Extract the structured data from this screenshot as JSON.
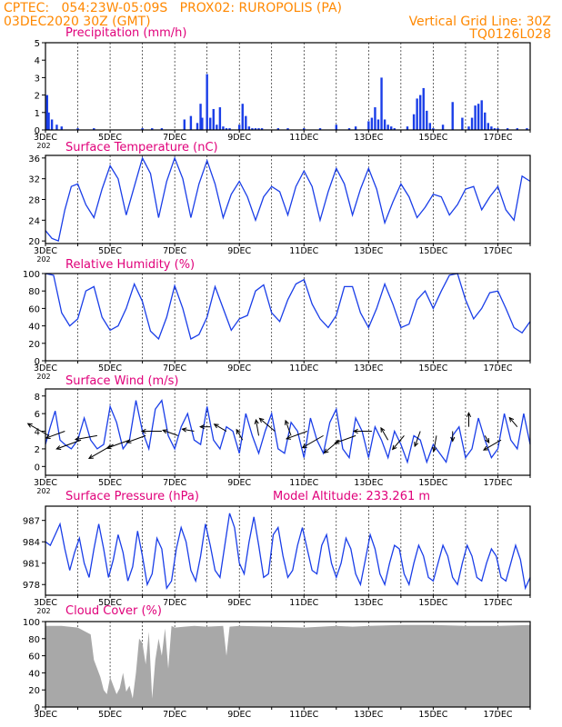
{
  "header": {
    "line1_left": "CPTEC:   054:23W-05:09S   PROX02: RUROPOLIS (PA)",
    "line2_left": "03DEC2020 30Z (GMT)",
    "line2_right": "Vertical Grid Line: 30Z",
    "line3_right": "TQ0126L028"
  },
  "x_tick_labels": [
    "3DEC",
    "5DEC",
    "7DEC",
    "9DEC",
    "11DEC",
    "13DEC",
    "15DEC",
    "17DEC"
  ],
  "x_year_fragment": "202",
  "colors": {
    "header": "#ff8800",
    "title": "#e0007a",
    "line": "#1a3ee8",
    "bar": "#1a3ee8",
    "cloud": "#a8a8a8",
    "arrow": "#000000"
  },
  "chart_data": [
    {
      "id": "precip",
      "type": "bar",
      "title": "Precipitation (mm/h)",
      "x_range": [
        3.0,
        18.0
      ],
      "ylim": [
        0,
        5
      ],
      "y_ticks": [
        0,
        1,
        2,
        3,
        4,
        5
      ],
      "x_days": [
        3.05,
        3.1,
        3.2,
        3.35,
        3.5,
        4.0,
        4.5,
        6.0,
        6.3,
        6.6,
        7.3,
        7.5,
        7.7,
        7.8,
        7.85,
        8.0,
        8.1,
        8.2,
        8.3,
        8.4,
        8.5,
        8.6,
        8.7,
        9.0,
        9.1,
        9.2,
        9.3,
        9.4,
        9.5,
        9.6,
        9.7,
        10.2,
        10.5,
        11.0,
        11.5,
        12.0,
        12.4,
        12.6,
        13.0,
        13.1,
        13.2,
        13.3,
        13.4,
        13.5,
        13.6,
        13.7,
        13.8,
        14.2,
        14.4,
        14.5,
        14.6,
        14.7,
        14.8,
        14.9,
        15.0,
        15.3,
        15.6,
        15.9,
        16.1,
        16.2,
        16.3,
        16.4,
        16.5,
        16.6,
        16.7,
        16.8,
        16.9,
        17.0,
        17.3,
        17.6,
        17.9
      ],
      "values": [
        2.0,
        1.0,
        0.6,
        0.3,
        0.2,
        0.1,
        0.1,
        0.1,
        0.1,
        0.1,
        0.6,
        0.8,
        0.4,
        1.5,
        0.7,
        3.2,
        0.7,
        1.2,
        0.3,
        1.3,
        0.2,
        0.1,
        0.1,
        0.3,
        1.5,
        0.8,
        0.2,
        0.1,
        0.1,
        0.1,
        0.1,
        0.1,
        0.1,
        0.1,
        0.1,
        0.3,
        0.1,
        0.2,
        0.5,
        0.7,
        1.3,
        0.6,
        3.0,
        0.6,
        0.3,
        0.2,
        0.1,
        0.2,
        0.9,
        1.8,
        2.0,
        2.4,
        1.1,
        0.4,
        0.1,
        0.3,
        1.6,
        0.7,
        0.2,
        0.7,
        1.4,
        1.5,
        1.7,
        1.0,
        0.4,
        0.2,
        0.1,
        0.1,
        0.1,
        0.1,
        0.1
      ]
    },
    {
      "id": "temp",
      "type": "line",
      "title": "Surface Temperature (nC)",
      "x_range": [
        3.0,
        18.0
      ],
      "ylim": [
        19.5,
        36.5
      ],
      "y_ticks": [
        20,
        24,
        28,
        32,
        36
      ],
      "x_days": [
        3.0,
        3.2,
        3.4,
        3.6,
        3.8,
        4.0,
        4.25,
        4.5,
        4.75,
        5.0,
        5.25,
        5.5,
        5.75,
        6.0,
        6.25,
        6.5,
        6.75,
        7.0,
        7.25,
        7.5,
        7.75,
        8.0,
        8.25,
        8.5,
        8.75,
        9.0,
        9.25,
        9.5,
        9.75,
        10.0,
        10.25,
        10.5,
        10.75,
        11.0,
        11.25,
        11.5,
        11.75,
        12.0,
        12.25,
        12.5,
        12.75,
        13.0,
        13.25,
        13.5,
        13.75,
        14.0,
        14.25,
        14.5,
        14.75,
        15.0,
        15.25,
        15.5,
        15.75,
        16.0,
        16.25,
        16.5,
        16.75,
        17.0,
        17.25,
        17.5,
        17.75,
        18.0
      ],
      "values": [
        22.0,
        20.5,
        20.0,
        26.0,
        30.5,
        31.0,
        27.0,
        24.5,
        30.0,
        34.5,
        32.0,
        25.0,
        30.5,
        36.0,
        33.0,
        24.5,
        31.5,
        36.0,
        32.0,
        24.5,
        31.0,
        35.5,
        31.0,
        24.5,
        29.0,
        31.5,
        28.5,
        24.0,
        28.5,
        30.5,
        29.5,
        25.0,
        30.5,
        33.5,
        30.5,
        24.0,
        29.5,
        34.0,
        31.0,
        25.0,
        30.0,
        34.0,
        30.0,
        23.5,
        27.5,
        31.0,
        28.5,
        24.5,
        26.5,
        29.0,
        28.5,
        25.0,
        27.0,
        30.0,
        30.5,
        26.0,
        28.5,
        30.5,
        26.0,
        24.0,
        32.5,
        31.5
      ]
    },
    {
      "id": "rh",
      "type": "line",
      "title": "Relative Humidity (%)",
      "x_range": [
        3.0,
        18.0
      ],
      "ylim": [
        0,
        100
      ],
      "y_ticks": [
        0,
        20,
        40,
        60,
        80,
        100
      ],
      "x_days": [
        3.0,
        3.25,
        3.5,
        3.75,
        4.0,
        4.25,
        4.5,
        4.75,
        5.0,
        5.25,
        5.5,
        5.75,
        6.0,
        6.25,
        6.5,
        6.75,
        7.0,
        7.25,
        7.5,
        7.75,
        8.0,
        8.25,
        8.5,
        8.75,
        9.0,
        9.25,
        9.5,
        9.75,
        10.0,
        10.25,
        10.5,
        10.75,
        11.0,
        11.25,
        11.5,
        11.75,
        12.0,
        12.25,
        12.5,
        12.75,
        13.0,
        13.25,
        13.5,
        13.75,
        14.0,
        14.25,
        14.5,
        14.75,
        15.0,
        15.25,
        15.5,
        15.75,
        16.0,
        16.25,
        16.5,
        16.75,
        17.0,
        17.25,
        17.5,
        17.75,
        18.0
      ],
      "values": [
        100,
        98,
        55,
        40,
        48,
        80,
        85,
        50,
        35,
        40,
        60,
        88,
        68,
        34,
        25,
        50,
        86,
        60,
        25,
        30,
        50,
        85,
        60,
        35,
        48,
        52,
        80,
        87,
        55,
        45,
        70,
        88,
        93,
        65,
        48,
        38,
        52,
        85,
        85,
        55,
        38,
        60,
        88,
        65,
        38,
        42,
        70,
        80,
        60,
        80,
        98,
        100,
        70,
        48,
        60,
        78,
        80,
        60,
        38,
        32,
        45
      ]
    },
    {
      "id": "wind",
      "type": "line",
      "title": "Surface Wind (m/s)",
      "x_range": [
        3.0,
        18.0
      ],
      "ylim": [
        -1,
        8.8
      ],
      "y_ticks": [
        0,
        2,
        4,
        6,
        8
      ],
      "x_days": [
        3.0,
        3.15,
        3.3,
        3.45,
        3.6,
        3.8,
        4.0,
        4.2,
        4.4,
        4.6,
        4.8,
        5.0,
        5.2,
        5.4,
        5.6,
        5.8,
        6.0,
        6.2,
        6.4,
        6.6,
        6.8,
        7.0,
        7.2,
        7.4,
        7.6,
        7.8,
        8.0,
        8.2,
        8.4,
        8.6,
        8.8,
        9.0,
        9.2,
        9.4,
        9.6,
        9.8,
        10.0,
        10.2,
        10.4,
        10.6,
        10.8,
        11.0,
        11.2,
        11.4,
        11.6,
        11.8,
        12.0,
        12.2,
        12.4,
        12.6,
        12.8,
        13.0,
        13.2,
        13.4,
        13.6,
        13.8,
        14.0,
        14.2,
        14.4,
        14.6,
        14.8,
        15.0,
        15.2,
        15.4,
        15.6,
        15.8,
        16.0,
        16.2,
        16.4,
        16.6,
        16.8,
        17.0,
        17.2,
        17.4,
        17.6,
        17.8,
        18.0
      ],
      "values": [
        2.5,
        4.5,
        6.3,
        3.0,
        2.5,
        2.0,
        3.0,
        5.5,
        3.0,
        2.0,
        2.5,
        6.8,
        5.0,
        2.0,
        3.0,
        7.5,
        4.0,
        2.0,
        6.5,
        7.5,
        3.5,
        2.0,
        4.5,
        6.0,
        3.0,
        2.5,
        6.8,
        3.0,
        2.0,
        4.5,
        4.0,
        1.5,
        6.0,
        3.5,
        1.5,
        4.0,
        6.0,
        2.0,
        1.5,
        5.0,
        4.0,
        1.0,
        5.5,
        3.0,
        1.5,
        5.0,
        6.5,
        2.0,
        1.0,
        5.5,
        4.0,
        1.0,
        4.5,
        3.0,
        1.0,
        4.0,
        2.5,
        0.5,
        3.5,
        3.0,
        0.5,
        2.5,
        1.5,
        0.5,
        3.5,
        4.5,
        1.0,
        2.0,
        5.5,
        3.0,
        1.0,
        2.0,
        6.0,
        3.0,
        2.0,
        6.0,
        2.5
      ]
    },
    {
      "id": "pressure",
      "type": "line",
      "title": "Surface Pressure (hPa)",
      "extra_label": "Model Altitude: 233.261  m",
      "x_range": [
        3.0,
        18.0
      ],
      "ylim": [
        976.5,
        989
      ],
      "y_ticks": [
        978,
        981,
        984,
        987
      ],
      "x_days": [
        3.0,
        3.15,
        3.3,
        3.45,
        3.6,
        3.75,
        3.9,
        4.05,
        4.2,
        4.35,
        4.5,
        4.65,
        4.8,
        4.95,
        5.1,
        5.25,
        5.4,
        5.55,
        5.7,
        5.85,
        6.0,
        6.15,
        6.3,
        6.45,
        6.6,
        6.75,
        6.9,
        7.05,
        7.2,
        7.35,
        7.5,
        7.65,
        7.8,
        7.95,
        8.1,
        8.25,
        8.4,
        8.55,
        8.7,
        8.85,
        9.0,
        9.15,
        9.3,
        9.45,
        9.6,
        9.75,
        9.9,
        10.05,
        10.2,
        10.35,
        10.5,
        10.65,
        10.8,
        10.95,
        11.1,
        11.25,
        11.4,
        11.55,
        11.7,
        11.85,
        12.0,
        12.15,
        12.3,
        12.45,
        12.6,
        12.75,
        12.9,
        13.05,
        13.2,
        13.35,
        13.5,
        13.65,
        13.8,
        13.95,
        14.1,
        14.25,
        14.4,
        14.55,
        14.7,
        14.85,
        15.0,
        15.15,
        15.3,
        15.45,
        15.6,
        15.75,
        15.9,
        16.05,
        16.2,
        16.35,
        16.5,
        16.65,
        16.8,
        16.95,
        17.1,
        17.25,
        17.4,
        17.55,
        17.7,
        17.85,
        18.0
      ],
      "values": [
        984,
        983.5,
        985,
        986.5,
        983,
        980,
        982.5,
        984.5,
        981,
        979,
        983,
        986.5,
        983,
        979,
        981.5,
        985,
        982.5,
        978.5,
        980.5,
        985.5,
        982,
        978,
        979.5,
        984.5,
        983,
        977.5,
        978.5,
        983,
        986,
        984,
        980,
        978.5,
        982,
        986.5,
        983.5,
        980,
        979,
        983.5,
        988,
        986,
        981,
        979.5,
        984,
        987.5,
        983.5,
        979,
        979.5,
        985,
        986,
        982,
        979,
        980,
        983.5,
        986,
        983,
        980,
        979.5,
        983.5,
        985,
        981,
        979,
        981,
        984.5,
        983,
        979.5,
        978,
        981.5,
        985,
        983,
        979.5,
        978,
        981,
        983.5,
        983,
        979.5,
        978,
        981,
        983.5,
        982,
        979,
        978.5,
        981,
        983.5,
        982,
        979,
        978,
        981,
        983.5,
        982,
        979,
        978.5,
        981,
        983,
        982,
        979,
        978.5,
        981,
        983.5,
        981.5,
        977.5,
        979
      ]
    },
    {
      "id": "cloud",
      "type": "area",
      "title": "Cloud Cover (%)",
      "x_range": [
        3.0,
        18.0
      ],
      "ylim": [
        0,
        100
      ],
      "y_ticks": [
        0,
        20,
        40,
        60,
        80,
        100
      ],
      "x_days": [
        3.0,
        3.5,
        4.0,
        4.4,
        4.5,
        4.6,
        4.7,
        4.8,
        4.9,
        5.0,
        5.1,
        5.2,
        5.3,
        5.4,
        5.5,
        5.6,
        5.7,
        5.8,
        5.9,
        6.0,
        6.1,
        6.2,
        6.3,
        6.4,
        6.5,
        6.6,
        6.7,
        6.8,
        6.9,
        7.0,
        7.3,
        7.6,
        8.0,
        8.5,
        8.6,
        8.7,
        9.0,
        10.0,
        11.0,
        12.0,
        12.5,
        13.0,
        14.0,
        15.0,
        16.0,
        17.0,
        18.0
      ],
      "values": [
        95,
        95,
        93,
        85,
        55,
        45,
        35,
        20,
        15,
        35,
        25,
        15,
        22,
        40,
        18,
        25,
        10,
        40,
        80,
        75,
        50,
        88,
        10,
        55,
        80,
        60,
        92,
        45,
        95,
        93,
        94,
        95,
        94,
        95,
        60,
        94,
        95,
        94,
        93,
        95,
        94,
        95,
        96,
        96,
        95,
        95,
        96
      ]
    }
  ],
  "wind_vectors": {
    "description": "arrow directions in degrees (math convention, 0=east, counterclockwise), one per plotted arrow",
    "x_days": [
      3.1,
      3.6,
      4.1,
      4.6,
      5.1,
      5.6,
      6.1,
      6.6,
      7.1,
      7.6,
      8.1,
      8.6,
      9.1,
      9.6,
      10.1,
      10.6,
      11.1,
      11.6,
      12.1,
      12.6,
      13.1,
      13.6,
      14.1,
      14.6,
      15.1,
      15.6,
      16.1,
      16.6,
      17.1,
      17.6
    ],
    "y_vals": [
      3.5,
      4.0,
      3.0,
      3.5,
      2.5,
      3.0,
      3.5,
      4.0,
      3.5,
      4.0,
      4.5,
      4.0,
      3.0,
      3.5,
      4.0,
      3.5,
      4.0,
      3.5,
      3.0,
      3.5,
      4.0,
      3.0,
      3.5,
      4.0,
      3.5,
      4.0,
      4.5,
      3.5,
      3.0,
      4.5
    ],
    "angles": [
      150,
      200,
      200,
      190,
      210,
      200,
      200,
      180,
      160,
      170,
      180,
      150,
      120,
      100,
      140,
      110,
      200,
      210,
      220,
      200,
      180,
      120,
      230,
      250,
      260,
      270,
      90,
      300,
      210,
      130
    ],
    "lengths": [
      1.2,
      1.0,
      1.3,
      1.1,
      1.4,
      1.2,
      1.0,
      1.0,
      0.8,
      0.6,
      0.5,
      0.7,
      0.6,
      0.8,
      1.0,
      0.8,
      1.1,
      1.2,
      1.0,
      1.1,
      0.9,
      0.7,
      0.9,
      0.8,
      0.8,
      0.5,
      0.7,
      0.4,
      1.0,
      0.6
    ]
  }
}
